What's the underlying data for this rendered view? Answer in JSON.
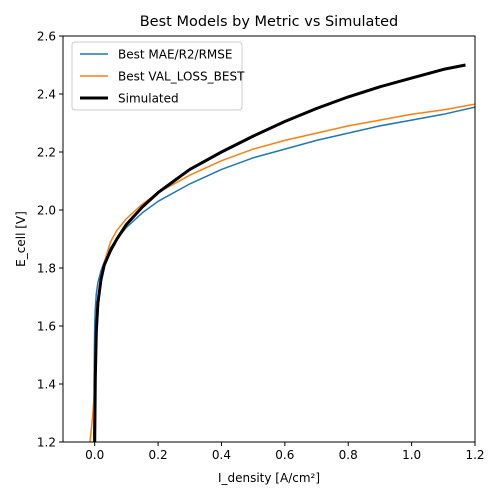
{
  "chart_data": {
    "type": "line",
    "title": "Best Models by Metric vs Simulated",
    "xlabel": "I_density [A/cm²]",
    "ylabel": "E_cell [V]",
    "xlim": [
      -0.1,
      1.2
    ],
    "ylim": [
      1.2,
      2.6
    ],
    "xticks": [
      0.0,
      0.2,
      0.4,
      0.6,
      0.8,
      1.0,
      1.2
    ],
    "xtick_labels": [
      "0.0",
      "0.2",
      "0.4",
      "0.6",
      "0.8",
      "1.0",
      "1.2"
    ],
    "yticks": [
      1.2,
      1.4,
      1.6,
      1.8,
      2.0,
      2.2,
      2.4,
      2.6
    ],
    "ytick_labels": [
      "1.2",
      "1.4",
      "1.6",
      "1.8",
      "2.0",
      "2.2",
      "2.4",
      "2.6"
    ],
    "grid": false,
    "legend_position": "top-left",
    "series": [
      {
        "name": "Best MAE/R2/RMSE",
        "color": "#1f77b4",
        "width": 1.5,
        "x": [
          -0.003,
          -0.002,
          -0.001,
          0.0,
          0.002,
          0.005,
          0.01,
          0.02,
          0.03,
          0.05,
          0.07,
          0.1,
          0.15,
          0.2,
          0.3,
          0.4,
          0.5,
          0.6,
          0.7,
          0.8,
          0.9,
          1.0,
          1.1,
          1.2
        ],
        "y": [
          1.2,
          1.4,
          1.52,
          1.6,
          1.66,
          1.71,
          1.75,
          1.79,
          1.82,
          1.87,
          1.9,
          1.94,
          1.99,
          2.03,
          2.09,
          2.14,
          2.18,
          2.21,
          2.24,
          2.265,
          2.29,
          2.31,
          2.33,
          2.355
        ]
      },
      {
        "name": "Best VAL_LOSS_BEST",
        "color": "#ff7f0e",
        "width": 1.5,
        "x": [
          -0.015,
          -0.01,
          -0.005,
          0.0,
          0.005,
          0.01,
          0.02,
          0.03,
          0.05,
          0.07,
          0.1,
          0.15,
          0.2,
          0.3,
          0.4,
          0.5,
          0.6,
          0.7,
          0.8,
          0.9,
          1.0,
          1.1,
          1.2
        ],
        "y": [
          1.2,
          1.25,
          1.31,
          1.39,
          1.55,
          1.65,
          1.76,
          1.82,
          1.89,
          1.93,
          1.97,
          2.02,
          2.06,
          2.12,
          2.17,
          2.21,
          2.24,
          2.265,
          2.29,
          2.31,
          2.33,
          2.345,
          2.365
        ]
      },
      {
        "name": "Simulated",
        "color": "#000000",
        "width": 3,
        "x": [
          0.0,
          0.002,
          0.005,
          0.01,
          0.02,
          0.03,
          0.05,
          0.07,
          0.1,
          0.15,
          0.2,
          0.25,
          0.3,
          0.4,
          0.5,
          0.6,
          0.7,
          0.8,
          0.9,
          1.0,
          1.1,
          1.17
        ],
        "y": [
          1.2,
          1.42,
          1.58,
          1.68,
          1.76,
          1.81,
          1.86,
          1.9,
          1.95,
          2.01,
          2.06,
          2.1,
          2.14,
          2.2,
          2.255,
          2.305,
          2.35,
          2.39,
          2.425,
          2.455,
          2.485,
          2.5
        ]
      }
    ]
  }
}
